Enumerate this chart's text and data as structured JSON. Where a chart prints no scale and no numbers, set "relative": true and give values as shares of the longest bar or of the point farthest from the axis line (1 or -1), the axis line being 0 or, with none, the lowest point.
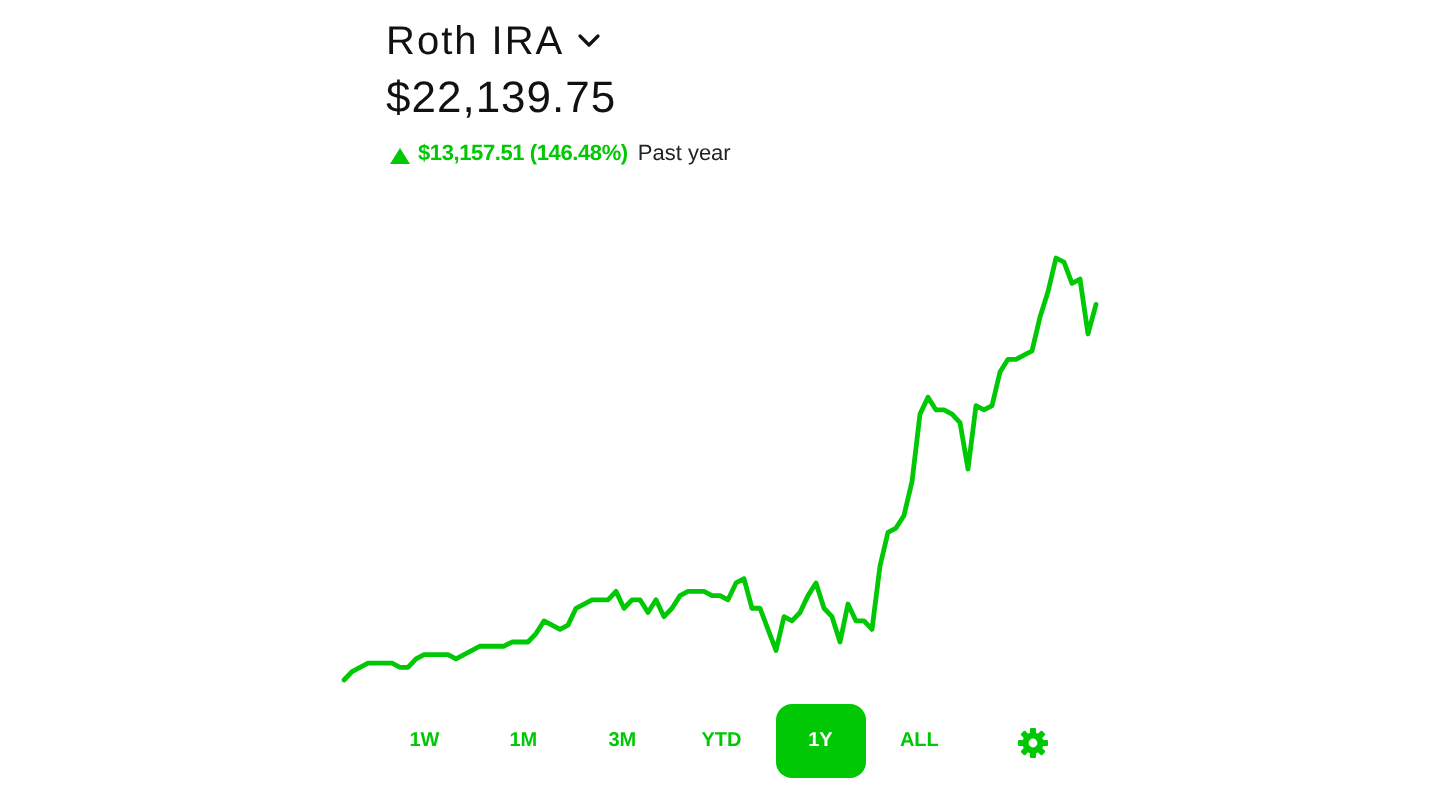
{
  "chart_data": {
    "type": "line",
    "title": "Roth IRA",
    "subtitle": "$22,139.75",
    "annotations": [
      "$13,157.51 (146.48%)",
      "Past year",
      "1W",
      "1M",
      "3M",
      "YTD",
      "1Y",
      "ALL"
    ],
    "relative": true,
    "categories": [
      null,
      null,
      null,
      null,
      null,
      null,
      null,
      null,
      null,
      null,
      null,
      null,
      null,
      null,
      null,
      null,
      null,
      null,
      null,
      null,
      null,
      null,
      null,
      null,
      null,
      null,
      null,
      null,
      null,
      null,
      null,
      null,
      null,
      null,
      null,
      null,
      null,
      null,
      null,
      null,
      null,
      null,
      null,
      null,
      null,
      null,
      null,
      null,
      null,
      null,
      null,
      null,
      null,
      null,
      null,
      null,
      null,
      null,
      null,
      null,
      null,
      null,
      null,
      null,
      null,
      null,
      null,
      null,
      null,
      null,
      null,
      null,
      null,
      null,
      null,
      null,
      null,
      null,
      null,
      null,
      null,
      null,
      null,
      null,
      null,
      null,
      null,
      null,
      null,
      null,
      null,
      null,
      null,
      null,
      null
    ],
    "series": [
      {
        "color": "#00c805",
        "values": [
          0,
          0.02,
          0.03,
          0.04,
          0.04,
          0.04,
          0.04,
          0.03,
          0.03,
          0.05,
          0.06,
          0.06,
          0.06,
          0.06,
          0.05,
          0.06,
          0.07,
          0.08,
          0.08,
          0.08,
          0.08,
          0.09,
          0.09,
          0.09,
          0.11,
          0.14,
          0.13,
          0.12,
          0.13,
          0.17,
          0.18,
          0.19,
          0.19,
          0.19,
          0.21,
          0.17,
          0.19,
          0.19,
          0.16,
          0.19,
          0.15,
          0.17,
          0.2,
          0.21,
          0.21,
          0.21,
          0.2,
          0.2,
          0.19,
          0.23,
          0.24,
          0.17,
          0.17,
          0.12,
          0.07,
          0.15,
          0.14,
          0.16,
          0.2,
          0.23,
          0.17,
          0.15,
          0.09,
          0.18,
          0.14,
          0.14,
          0.12,
          0.27,
          0.35,
          0.36,
          0.39,
          0.47,
          0.63,
          0.67,
          0.64,
          0.64,
          0.63,
          0.61,
          0.5,
          0.65,
          0.64,
          0.65,
          0.73,
          0.76,
          0.76,
          0.77,
          0.78,
          0.86,
          0.92,
          1,
          0.99,
          0.94,
          0.95,
          0.82,
          0.89
        ]
      }
    ]
  }
}
